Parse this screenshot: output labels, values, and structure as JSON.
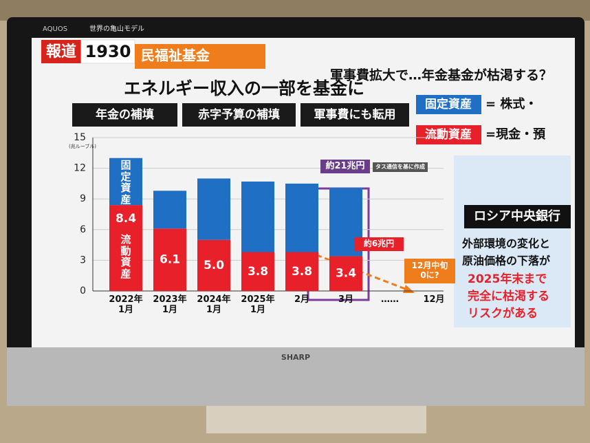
{
  "chart_data": {
    "type": "bar",
    "stacked": true,
    "y_label": "(兆ルーブル)",
    "categories": [
      "2022年\n1月",
      "2023年\n1月",
      "2024年\n1月",
      "2025年\n1月",
      "2月",
      "3月",
      "……",
      "12月"
    ],
    "series": [
      {
        "name": "流動資産",
        "color": "#e8202a",
        "values": [
          8.4,
          6.1,
          5.0,
          3.8,
          3.8,
          3.4,
          null,
          null
        ],
        "value_labels": [
          "8.4",
          "6.1",
          "5.0",
          "3.8",
          "3.8",
          "3.4",
          null,
          null
        ]
      },
      {
        "name": "固定資産",
        "color": "#1f6fc4",
        "values": [
          4.6,
          3.7,
          6.0,
          6.9,
          6.7,
          6.7,
          null,
          null
        ]
      }
    ],
    "ylim": [
      0,
      15
    ],
    "yticks": [
      0,
      3,
      6,
      9,
      12,
      15
    ],
    "grid": true,
    "annotations": [
      "約21兆円",
      "タス通信を基に作成",
      "約6兆円",
      "12月中旬\n0に?"
    ]
  },
  "screen": {
    "brand_top": "AQUOS",
    "model": "世界の亀山モデル",
    "brand_bottom": "SHARP",
    "program": "報道",
    "program_time": "1930",
    "banner": "民福祉基金",
    "headline": "軍事費拡大で…年金基金が枯渇する？",
    "title": "エネルギー収入の一部を基金に",
    "uses": [
      "年金の補填",
      "赤字予算の補填",
      "軍事費にも転用"
    ],
    "legend_defs": [
      {
        "term": "固定資産",
        "def": "= 株式・"
      },
      {
        "term": "流動資産",
        "def": "=現金・預"
      }
    ],
    "panel_title": "ロシア中央銀行",
    "panel_lines": [
      "外部環境の変化と",
      "原油価格の下落が"
    ],
    "panel_warning": [
      "2025年末まで",
      "完全に枯渇する",
      "リスクがある"
    ]
  }
}
